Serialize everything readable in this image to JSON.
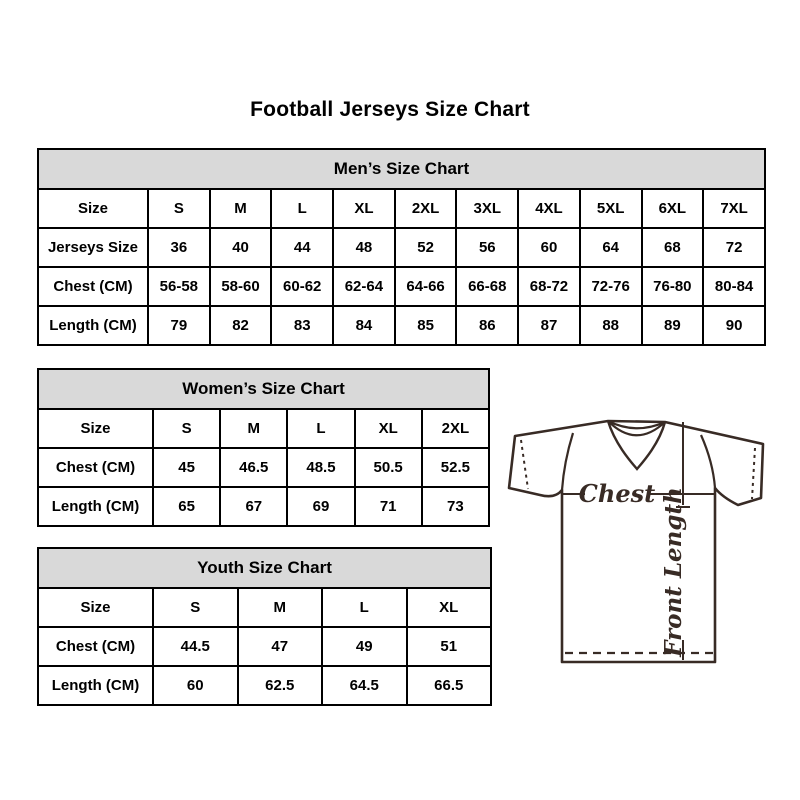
{
  "title": "Football Jerseys Size Chart",
  "tables": {
    "mens": {
      "title": "Men’s Size Chart",
      "rows": [
        [
          "Size",
          "S",
          "M",
          "L",
          "XL",
          "2XL",
          "3XL",
          "4XL",
          "5XL",
          "6XL",
          "7XL"
        ],
        [
          "Jerseys Size",
          "36",
          "40",
          "44",
          "48",
          "52",
          "56",
          "60",
          "64",
          "68",
          "72"
        ],
        [
          "Chest (CM)",
          "56-58",
          "58-60",
          "60-62",
          "62-64",
          "64-66",
          "66-68",
          "68-72",
          "72-76",
          "76-80",
          "80-84"
        ],
        [
          "Length (CM)",
          "79",
          "82",
          "83",
          "84",
          "85",
          "86",
          "87",
          "88",
          "89",
          "90"
        ]
      ]
    },
    "womens": {
      "title": "Women’s Size Chart",
      "rows": [
        [
          "Size",
          "S",
          "M",
          "L",
          "XL",
          "2XL"
        ],
        [
          "Chest (CM)",
          "45",
          "46.5",
          "48.5",
          "50.5",
          "52.5"
        ],
        [
          "Length (CM)",
          "65",
          "67",
          "69",
          "71",
          "73"
        ]
      ]
    },
    "youth": {
      "title": "Youth Size Chart",
      "rows": [
        [
          "Size",
          "S",
          "M",
          "L",
          "XL"
        ],
        [
          "Chest (CM)",
          "44.5",
          "47",
          "49",
          "51"
        ],
        [
          "Length (CM)",
          "60",
          "62.5",
          "64.5",
          "66.5"
        ]
      ]
    }
  },
  "jersey": {
    "chest_label": "Chest",
    "front_length_label": "Front Length"
  },
  "colors": {
    "table_header_bg": "#d9d9d9",
    "table_border": "#000000",
    "jersey_line": "#382b25"
  }
}
